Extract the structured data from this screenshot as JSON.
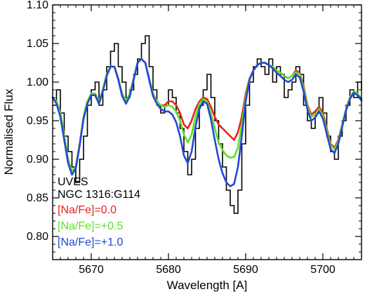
{
  "chart_data": {
    "type": "line",
    "title": "",
    "xlabel": "Wavelength [A]",
    "ylabel": "Normalised Flux",
    "xlim": [
      5665,
      5705
    ],
    "ylim": [
      0.77,
      1.1
    ],
    "x_ticks": [
      5670,
      5680,
      5690,
      5700
    ],
    "x_tick_labels": [
      "5670",
      "5680",
      "5690",
      "5700"
    ],
    "y_ticks": [
      0.8,
      0.85,
      0.9,
      0.95,
      1.0,
      1.05,
      1.1
    ],
    "y_tick_labels": [
      "0.80",
      "0.85",
      "0.90",
      "0.95",
      "1.00",
      "1.05",
      "1.10"
    ],
    "grid": false,
    "annotations": [
      {
        "text": "UVES",
        "color": "#000000"
      },
      {
        "text": "NGC 1316:G114",
        "color": "#000000"
      }
    ],
    "legend": {
      "placement": "bottom-left",
      "entries": [
        {
          "label": "[Na/Fe]=0.0",
          "color": "#e8231c"
        },
        {
          "label": "[Na/Fe]=+0.5",
          "color": "#5ee02a"
        },
        {
          "label": "[Na/Fe]=+1.0",
          "color": "#2348d6"
        }
      ]
    },
    "observed": {
      "color": "#000000",
      "x": [
        5665.0,
        5665.5,
        5666.0,
        5666.5,
        5667.0,
        5667.5,
        5668.0,
        5668.5,
        5669.0,
        5669.5,
        5670.0,
        5670.5,
        5671.0,
        5671.5,
        5672.0,
        5672.5,
        5673.0,
        5673.5,
        5674.0,
        5674.5,
        5675.0,
        5675.5,
        5676.0,
        5676.5,
        5677.0,
        5677.5,
        5678.0,
        5678.5,
        5679.0,
        5679.5,
        5680.0,
        5680.5,
        5681.0,
        5681.5,
        5682.0,
        5682.5,
        5683.0,
        5683.5,
        5684.0,
        5684.5,
        5685.0,
        5685.5,
        5686.0,
        5686.5,
        5687.0,
        5687.5,
        5688.0,
        5688.5,
        5689.0,
        5689.5,
        5690.0,
        5690.5,
        5691.0,
        5691.5,
        5692.0,
        5692.5,
        5693.0,
        5693.5,
        5694.0,
        5694.5,
        5695.0,
        5695.5,
        5696.0,
        5696.5,
        5697.0,
        5697.5,
        5698.0,
        5698.5,
        5699.0,
        5699.5,
        5700.0,
        5700.5,
        5701.0,
        5701.5,
        5702.0,
        5702.5,
        5703.0,
        5703.5,
        5704.0,
        5704.5,
        5705.0
      ],
      "y": [
        0.97,
        0.99,
        0.96,
        0.93,
        0.91,
        0.89,
        0.87,
        0.9,
        0.93,
        0.97,
        0.99,
        1.0,
        0.97,
        0.99,
        1.02,
        1.04,
        1.05,
        1.02,
        1.0,
        0.98,
        0.99,
        1.01,
        1.03,
        1.05,
        1.06,
        1.02,
        0.99,
        0.97,
        0.96,
        0.97,
        0.99,
        0.98,
        0.96,
        0.94,
        0.91,
        0.88,
        0.9,
        0.94,
        0.97,
        0.99,
        1.01,
        0.98,
        0.95,
        0.92,
        0.89,
        0.86,
        0.84,
        0.83,
        0.86,
        0.92,
        0.97,
        1.0,
        1.02,
        1.03,
        1.02,
        1.01,
        1.03,
        1.0,
        1.02,
        1.01,
        0.98,
        0.99,
        1.0,
        1.02,
        1.01,
        0.97,
        0.95,
        0.94,
        0.96,
        0.98,
        0.96,
        0.93,
        0.91,
        0.9,
        0.93,
        0.95,
        0.97,
        0.99,
        0.98,
        1.0,
        0.99
      ]
    },
    "series": [
      {
        "name": "[Na/Fe]=0.0",
        "color": "#e8231c",
        "x": [
          5665.0,
          5665.5,
          5666.0,
          5666.5,
          5667.0,
          5667.5,
          5668.0,
          5668.5,
          5669.0,
          5669.5,
          5670.0,
          5670.5,
          5671.0,
          5671.5,
          5672.0,
          5672.5,
          5673.0,
          5673.5,
          5674.0,
          5674.5,
          5675.0,
          5675.5,
          5676.0,
          5676.5,
          5677.0,
          5677.5,
          5678.0,
          5678.5,
          5679.0,
          5679.5,
          5680.0,
          5680.5,
          5681.0,
          5681.5,
          5682.0,
          5682.5,
          5683.0,
          5683.5,
          5684.0,
          5684.5,
          5685.0,
          5685.5,
          5686.0,
          5686.5,
          5687.0,
          5687.5,
          5688.0,
          5688.5,
          5689.0,
          5689.5,
          5690.0,
          5690.5,
          5691.0,
          5691.5,
          5692.0,
          5692.5,
          5693.0,
          5693.5,
          5694.0,
          5694.5,
          5695.0,
          5695.5,
          5696.0,
          5696.5,
          5697.0,
          5697.5,
          5698.0,
          5698.5,
          5699.0,
          5699.5,
          5700.0,
          5700.5,
          5701.0,
          5701.5,
          5702.0,
          5702.5,
          5703.0,
          5703.5,
          5704.0,
          5704.5,
          5705.0
        ],
        "y": [
          0.98,
          0.975,
          0.96,
          0.93,
          0.9,
          0.885,
          0.89,
          0.92,
          0.955,
          0.975,
          0.985,
          0.985,
          0.975,
          0.99,
          1.01,
          1.02,
          1.02,
          1.005,
          0.985,
          0.975,
          0.985,
          1.005,
          1.025,
          1.03,
          1.025,
          1.005,
          0.985,
          0.975,
          0.97,
          0.97,
          0.975,
          0.975,
          0.97,
          0.96,
          0.945,
          0.94,
          0.95,
          0.965,
          0.975,
          0.98,
          0.978,
          0.968,
          0.955,
          0.945,
          0.94,
          0.935,
          0.93,
          0.925,
          0.935,
          0.955,
          0.985,
          1.005,
          1.015,
          1.022,
          1.025,
          1.025,
          1.022,
          1.02,
          1.015,
          1.012,
          1.008,
          1.005,
          1.008,
          1.015,
          1.012,
          0.995,
          0.97,
          0.958,
          0.962,
          0.968,
          0.96,
          0.94,
          0.92,
          0.915,
          0.925,
          0.945,
          0.965,
          0.98,
          0.988,
          0.985,
          0.978
        ]
      },
      {
        "name": "[Na/Fe]=+0.5",
        "color": "#5ee02a",
        "x": [
          5665.0,
          5665.5,
          5666.0,
          5666.5,
          5667.0,
          5667.5,
          5668.0,
          5668.5,
          5669.0,
          5669.5,
          5670.0,
          5670.5,
          5671.0,
          5671.5,
          5672.0,
          5672.5,
          5673.0,
          5673.5,
          5674.0,
          5674.5,
          5675.0,
          5675.5,
          5676.0,
          5676.5,
          5677.0,
          5677.5,
          5678.0,
          5678.5,
          5679.0,
          5679.5,
          5680.0,
          5680.5,
          5681.0,
          5681.5,
          5682.0,
          5682.5,
          5683.0,
          5683.5,
          5684.0,
          5684.5,
          5685.0,
          5685.5,
          5686.0,
          5686.5,
          5687.0,
          5687.5,
          5688.0,
          5688.5,
          5689.0,
          5689.5,
          5690.0,
          5690.5,
          5691.0,
          5691.5,
          5692.0,
          5692.5,
          5693.0,
          5693.5,
          5694.0,
          5694.5,
          5695.0,
          5695.5,
          5696.0,
          5696.5,
          5697.0,
          5697.5,
          5698.0,
          5698.5,
          5699.0,
          5699.5,
          5700.0,
          5700.5,
          5701.0,
          5701.5,
          5702.0,
          5702.5,
          5703.0,
          5703.5,
          5704.0,
          5704.5,
          5705.0
        ],
        "y": [
          0.98,
          0.975,
          0.96,
          0.93,
          0.9,
          0.885,
          0.89,
          0.92,
          0.955,
          0.975,
          0.985,
          0.985,
          0.975,
          0.99,
          1.01,
          1.02,
          1.02,
          1.005,
          0.985,
          0.975,
          0.985,
          1.005,
          1.025,
          1.03,
          1.025,
          1.005,
          0.985,
          0.975,
          0.97,
          0.968,
          0.97,
          0.968,
          0.962,
          0.95,
          0.932,
          0.922,
          0.932,
          0.955,
          0.972,
          0.978,
          0.975,
          0.96,
          0.94,
          0.922,
          0.912,
          0.905,
          0.902,
          0.903,
          0.915,
          0.945,
          0.98,
          1.005,
          1.015,
          1.022,
          1.025,
          1.025,
          1.022,
          1.02,
          1.015,
          1.012,
          1.008,
          1.005,
          1.008,
          1.013,
          1.01,
          0.992,
          0.968,
          0.955,
          0.958,
          0.965,
          0.957,
          0.937,
          0.918,
          0.913,
          0.923,
          0.945,
          0.965,
          0.98,
          0.988,
          0.985,
          0.978
        ]
      },
      {
        "name": "[Na/Fe]=+1.0",
        "color": "#2348d6",
        "x": [
          5665.0,
          5665.5,
          5666.0,
          5666.5,
          5667.0,
          5667.5,
          5668.0,
          5668.5,
          5669.0,
          5669.5,
          5670.0,
          5670.5,
          5671.0,
          5671.5,
          5672.0,
          5672.5,
          5673.0,
          5673.5,
          5674.0,
          5674.5,
          5675.0,
          5675.5,
          5676.0,
          5676.5,
          5677.0,
          5677.5,
          5678.0,
          5678.5,
          5679.0,
          5679.5,
          5680.0,
          5680.5,
          5681.0,
          5681.5,
          5682.0,
          5682.5,
          5683.0,
          5683.5,
          5684.0,
          5684.5,
          5685.0,
          5685.5,
          5686.0,
          5686.5,
          5687.0,
          5687.5,
          5688.0,
          5688.5,
          5689.0,
          5689.5,
          5690.0,
          5690.5,
          5691.0,
          5691.5,
          5692.0,
          5692.5,
          5693.0,
          5693.5,
          5694.0,
          5694.5,
          5695.0,
          5695.5,
          5696.0,
          5696.5,
          5697.0,
          5697.5,
          5698.0,
          5698.5,
          5699.0,
          5699.5,
          5700.0,
          5700.5,
          5701.0,
          5701.5,
          5702.0,
          5702.5,
          5703.0,
          5703.5,
          5704.0,
          5704.5,
          5705.0
        ],
        "y": [
          0.98,
          0.972,
          0.955,
          0.925,
          0.895,
          0.88,
          0.888,
          0.918,
          0.952,
          0.972,
          0.983,
          0.983,
          0.972,
          0.988,
          1.008,
          1.02,
          1.02,
          1.003,
          0.982,
          0.972,
          0.982,
          1.003,
          1.025,
          1.03,
          1.025,
          1.003,
          0.982,
          0.972,
          0.965,
          0.962,
          0.962,
          0.958,
          0.948,
          0.93,
          0.905,
          0.895,
          0.91,
          0.942,
          0.965,
          0.975,
          0.972,
          0.952,
          0.925,
          0.9,
          0.882,
          0.87,
          0.865,
          0.868,
          0.89,
          0.93,
          0.975,
          1.003,
          1.015,
          1.022,
          1.025,
          1.025,
          1.022,
          1.018,
          1.012,
          1.008,
          1.003,
          1.0,
          1.003,
          1.01,
          1.006,
          0.988,
          0.964,
          0.95,
          0.954,
          0.962,
          0.953,
          0.933,
          0.913,
          0.908,
          0.92,
          0.942,
          0.963,
          0.978,
          0.986,
          0.983,
          0.976
        ]
      }
    ]
  }
}
